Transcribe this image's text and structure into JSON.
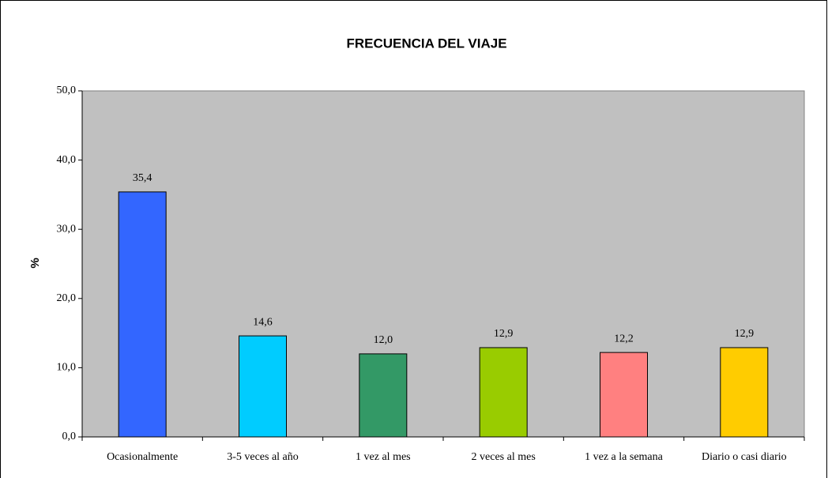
{
  "chart_data": {
    "type": "bar",
    "title": "FRECUENCIA DEL VIAJE",
    "y_label": "%",
    "categories": [
      "Ocasionalmente",
      "3-5 veces al año",
      "1 vez al mes",
      "2 veces al mes",
      "1 vez a la semana",
      "Diario o casi diario"
    ],
    "values": [
      35.4,
      14.6,
      12.0,
      12.9,
      12.2,
      12.9
    ],
    "value_labels": [
      "35,4",
      "14,6",
      "12,0",
      "12,9",
      "12,2",
      "12,9"
    ],
    "colors": [
      "#3366ff",
      "#00ccff",
      "#339966",
      "#99cc00",
      "#ff8080",
      "#ffcc00"
    ],
    "ylim": [
      0,
      50
    ],
    "yticks": [
      {
        "value": 0,
        "label": "0,0"
      },
      {
        "value": 10,
        "label": "10,0"
      },
      {
        "value": 20,
        "label": "20,0"
      },
      {
        "value": 30,
        "label": "30,0"
      },
      {
        "value": 40,
        "label": "40,0"
      },
      {
        "value": 50,
        "label": "50,0"
      }
    ],
    "plot_background": "#c0c0c0"
  }
}
